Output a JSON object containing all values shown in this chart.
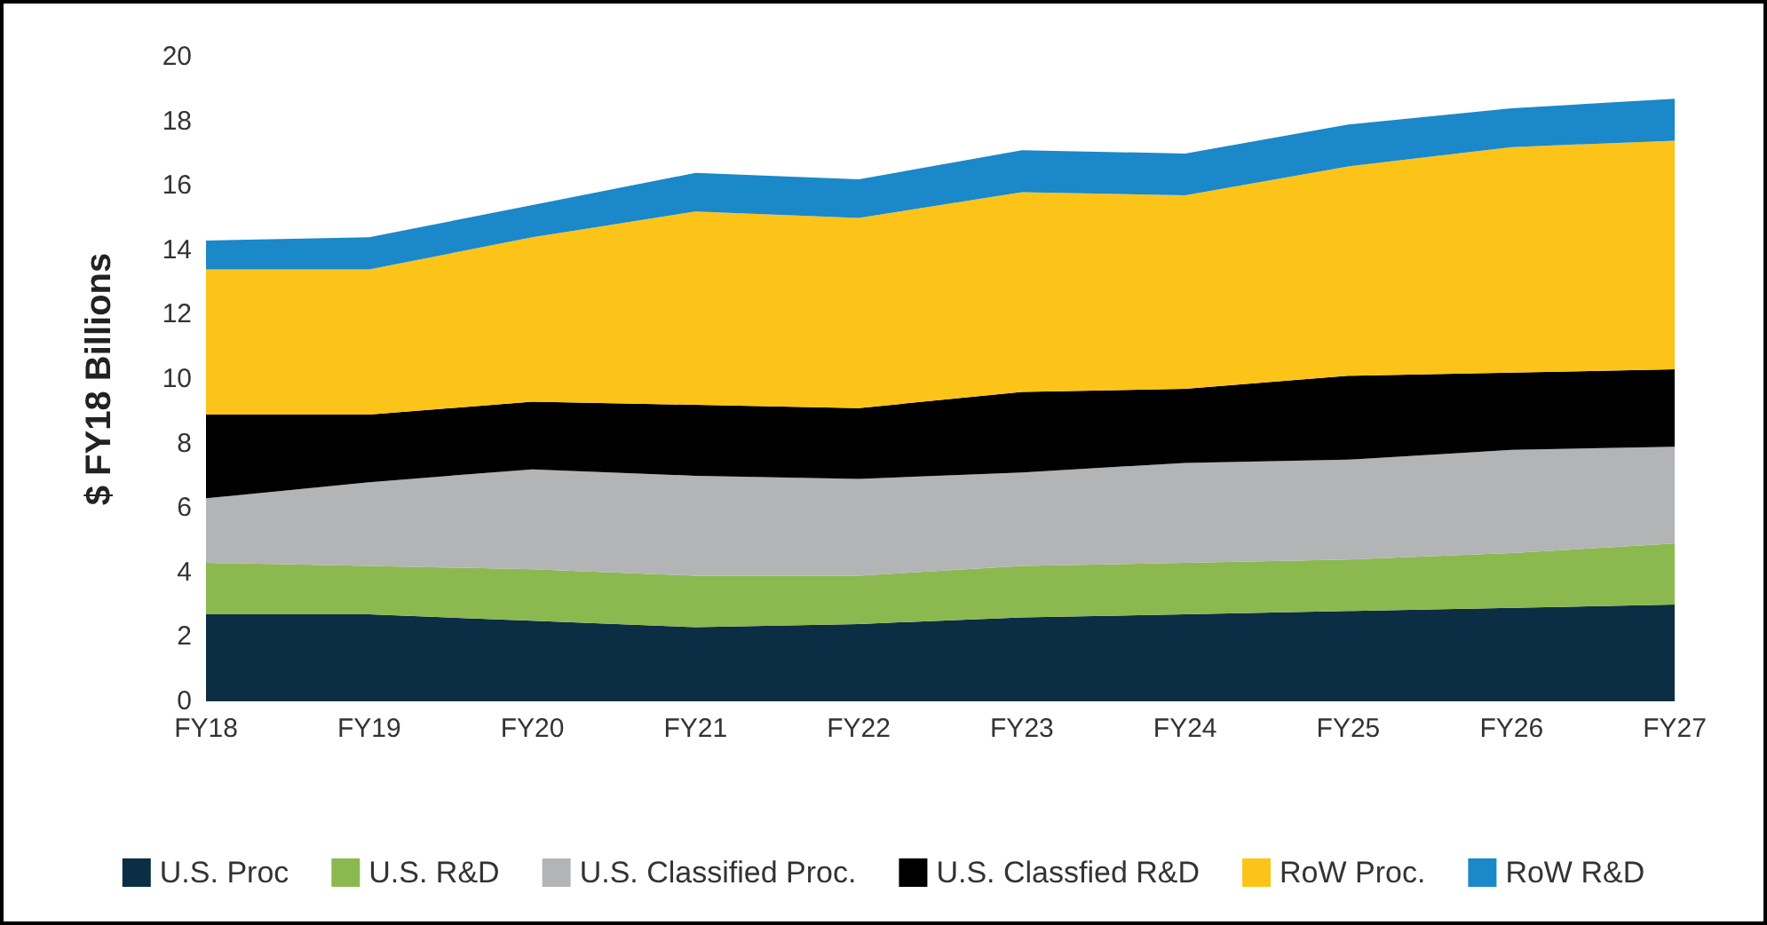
{
  "chart_data": {
    "type": "area",
    "stacked": true,
    "ylabel": "$ FY18 Billions",
    "categories": [
      "FY18",
      "FY19",
      "FY20",
      "FY21",
      "FY22",
      "FY23",
      "FY24",
      "FY25",
      "FY26",
      "FY27"
    ],
    "series": [
      {
        "name": "U.S. Proc",
        "color": "#0b2e45",
        "values": [
          2.7,
          2.7,
          2.5,
          2.3,
          2.4,
          2.6,
          2.7,
          2.8,
          2.9,
          3.0
        ]
      },
      {
        "name": "U.S. R&D",
        "color": "#8cb850",
        "values": [
          1.6,
          1.5,
          1.6,
          1.6,
          1.5,
          1.6,
          1.6,
          1.6,
          1.7,
          1.9
        ]
      },
      {
        "name": "U.S. Classified Proc.",
        "color": "#b3b4b6",
        "values": [
          2.0,
          2.6,
          3.1,
          3.1,
          3.0,
          2.9,
          3.1,
          3.1,
          3.2,
          3.0
        ]
      },
      {
        "name": "U.S. Classfied R&D",
        "color": "#000000",
        "values": [
          2.6,
          2.1,
          2.1,
          2.2,
          2.2,
          2.5,
          2.3,
          2.6,
          2.4,
          2.4
        ]
      },
      {
        "name": "RoW Proc.",
        "color": "#fcc419",
        "values": [
          4.5,
          4.5,
          5.1,
          6.0,
          5.9,
          6.2,
          6.0,
          6.5,
          7.0,
          7.1
        ]
      },
      {
        "name": "RoW R&D",
        "color": "#1a88c9",
        "values": [
          0.9,
          1.0,
          1.0,
          1.2,
          1.2,
          1.3,
          1.3,
          1.3,
          1.2,
          1.3
        ]
      }
    ],
    "ylim": [
      0,
      20
    ],
    "yticks": [
      0,
      2,
      4,
      6,
      8,
      10,
      12,
      14,
      16,
      18,
      20
    ],
    "grid": false,
    "legend": "bottom"
  }
}
